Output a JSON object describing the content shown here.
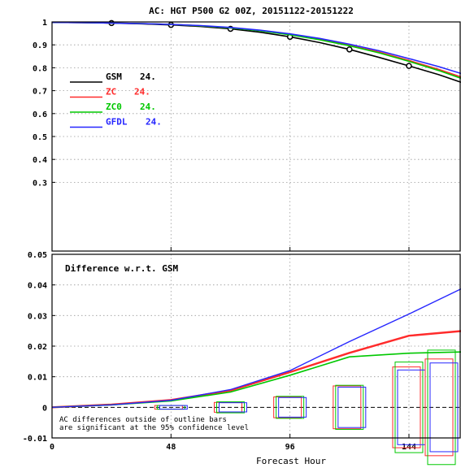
{
  "chart_data": [
    {
      "type": "line",
      "title": "AC: HGT P500 G2 00Z, 20151122-20151222",
      "xlabel": "",
      "ylabel": "",
      "xlim": [
        0,
        165
      ],
      "ylim": [
        0.0,
        1.0
      ],
      "x_ticks": [
        0,
        48,
        96,
        144
      ],
      "y_ticks": [
        {
          "v": 0.3,
          "label": "0.3"
        },
        {
          "v": 0.4,
          "label": "0.4"
        },
        {
          "v": 0.5,
          "label": "0.5"
        },
        {
          "v": 0.6,
          "label": "0.6"
        },
        {
          "v": 0.7,
          "label": "0.7"
        },
        {
          "v": 0.8,
          "label": "0.8"
        },
        {
          "v": 0.9,
          "label": "0.9"
        },
        {
          "v": 1.0,
          "label": "1"
        }
      ],
      "grid": true,
      "legend": "left",
      "x": [
        0,
        12,
        24,
        36,
        48,
        60,
        72,
        84,
        96,
        108,
        120,
        132,
        144,
        156,
        165
      ],
      "series": [
        {
          "name": "GSM",
          "count": "24.",
          "color": "#000000",
          "markers": [
            24,
            48,
            72,
            96,
            120,
            144
          ],
          "values": [
            0.998,
            0.997,
            0.995,
            0.992,
            0.987,
            0.98,
            0.97,
            0.955,
            0.935,
            0.91,
            0.88,
            0.845,
            0.808,
            0.77,
            0.737
          ]
        },
        {
          "name": "ZC",
          "count": "24.",
          "color": "#ff2b2b",
          "markers": [],
          "values": [
            0.998,
            0.997,
            0.995,
            0.993,
            0.989,
            0.983,
            0.974,
            0.962,
            0.945,
            0.924,
            0.898,
            0.868,
            0.832,
            0.793,
            0.76
          ]
        },
        {
          "name": "ZC0",
          "count": "24.",
          "color": "#00c800",
          "markers": [],
          "values": [
            0.998,
            0.997,
            0.995,
            0.993,
            0.989,
            0.983,
            0.974,
            0.961,
            0.944,
            0.922,
            0.896,
            0.865,
            0.828,
            0.788,
            0.754
          ]
        },
        {
          "name": "GFDL",
          "count": "24.",
          "color": "#2626ff",
          "markers": [],
          "values": [
            0.998,
            0.997,
            0.995,
            0.993,
            0.989,
            0.984,
            0.976,
            0.964,
            0.948,
            0.928,
            0.903,
            0.874,
            0.84,
            0.805,
            0.775
          ]
        }
      ]
    },
    {
      "type": "line",
      "title": "Difference w.r.t. GSM",
      "xlabel": "Forecast Hour",
      "ylabel": "",
      "xlim": [
        0,
        165
      ],
      "ylim": [
        -0.01,
        0.05
      ],
      "x_ticks": [
        0,
        48,
        96,
        144
      ],
      "y_ticks": [
        {
          "v": -0.01,
          "label": "-0.01"
        },
        {
          "v": 0.0,
          "label": "0"
        },
        {
          "v": 0.01,
          "label": "0.01"
        },
        {
          "v": 0.02,
          "label": "0.02"
        },
        {
          "v": 0.03,
          "label": "0.03"
        },
        {
          "v": 0.04,
          "label": "0.04"
        },
        {
          "v": 0.05,
          "label": "0.05"
        }
      ],
      "grid": true,
      "x": [
        0,
        24,
        48,
        72,
        96,
        120,
        144,
        165
      ],
      "series": [
        {
          "name": "ZC",
          "color": "#ff2b2b",
          "width": 2.4,
          "values": [
            0.0,
            0.0009,
            0.0024,
            0.0055,
            0.0115,
            0.0178,
            0.0234,
            0.0249
          ]
        },
        {
          "name": "ZC0",
          "color": "#00c800",
          "width": 1.6,
          "values": [
            0.0,
            0.0008,
            0.0021,
            0.005,
            0.0105,
            0.0165,
            0.0177,
            0.0181
          ]
        },
        {
          "name": "GFDL",
          "color": "#2626ff",
          "width": 1.4,
          "values": [
            0.0,
            0.0008,
            0.0023,
            0.0058,
            0.012,
            0.0215,
            0.0305,
            0.0387
          ]
        }
      ],
      "significance_bars": {
        "note": "half-widths of the 95% confidence outline bars (centered on 0), per series",
        "x": [
          48,
          72,
          96,
          120,
          144,
          165
        ],
        "ZC": [
          0.0006,
          0.0016,
          0.0034,
          0.007,
          0.0132,
          0.0158
        ],
        "ZC0": [
          0.0006,
          0.0018,
          0.0036,
          0.0072,
          0.0148,
          0.0187
        ],
        "GFDL": [
          0.0006,
          0.0015,
          0.0032,
          0.0066,
          0.0122,
          0.0145
        ]
      },
      "annotation": [
        "AC differences outside of outline bars",
        "are significant at the 95% confidence level"
      ]
    }
  ]
}
